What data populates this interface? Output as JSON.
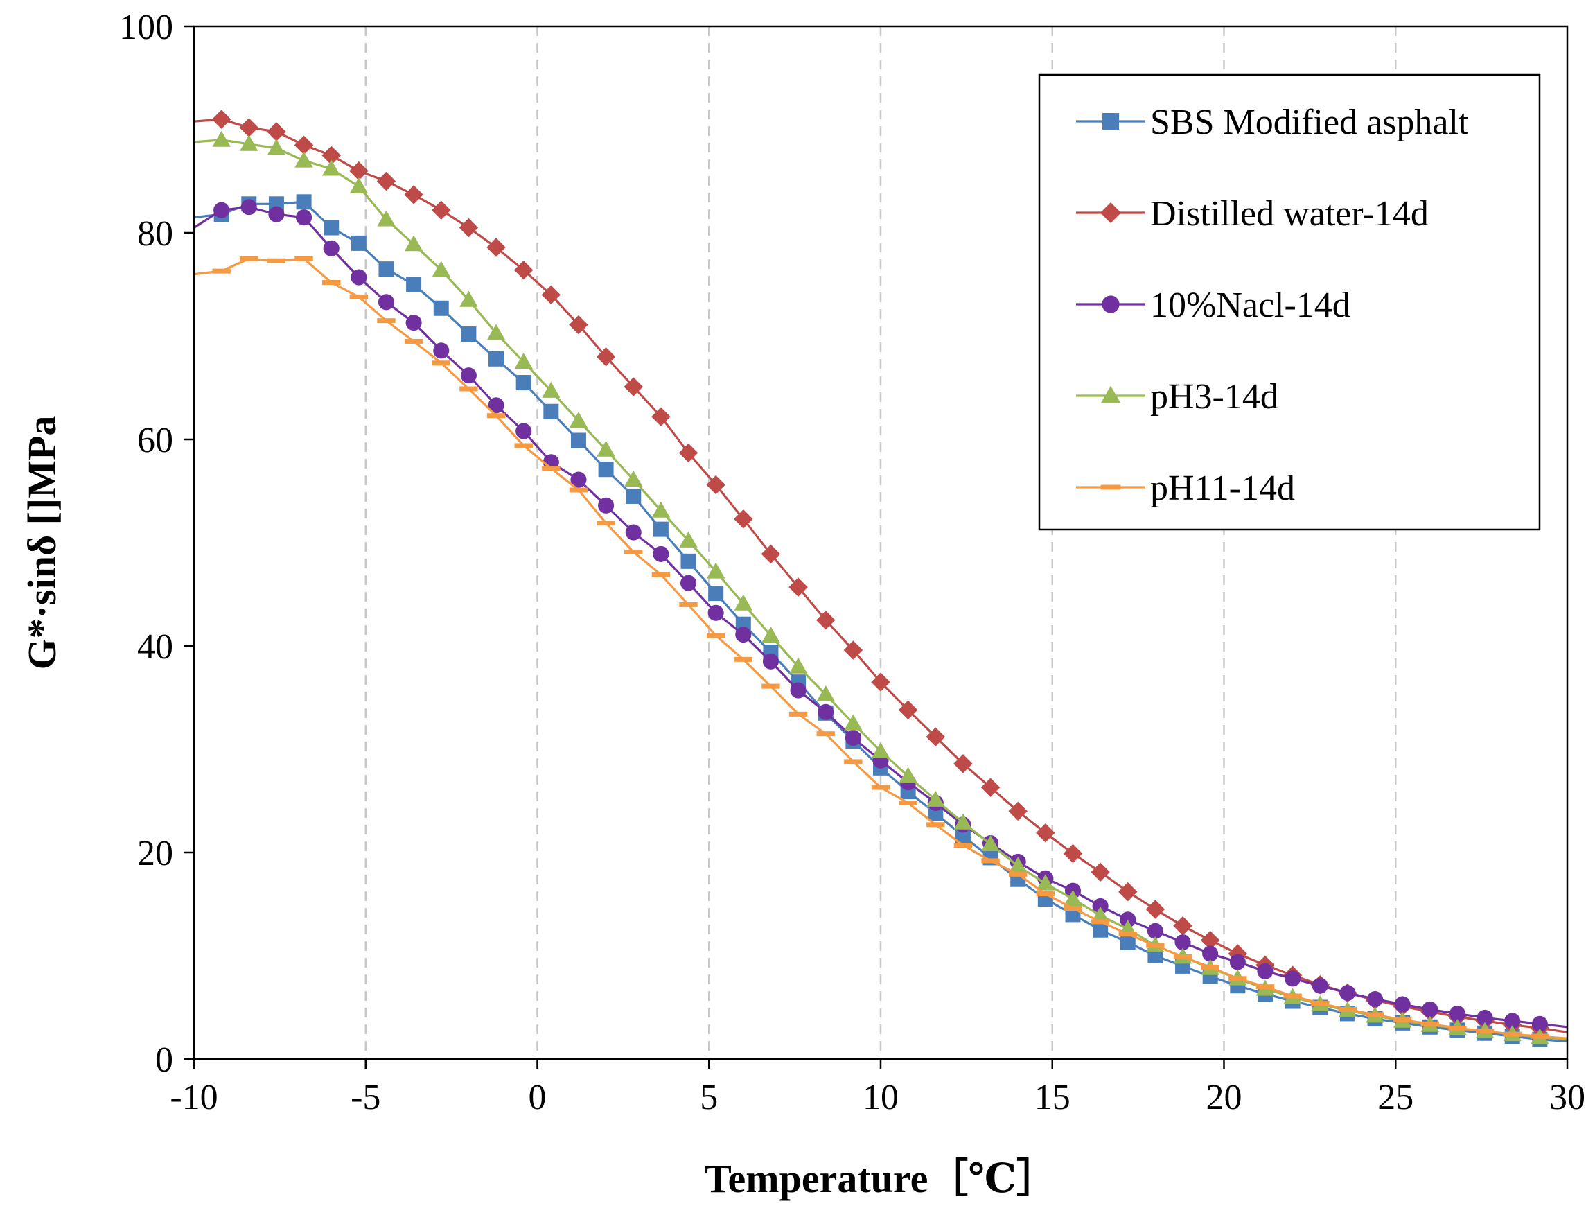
{
  "chart_data": {
    "type": "line",
    "title": "",
    "xlabel": "Temperature［℃］",
    "ylabel": "G*·sinδ []MPa",
    "xlim": [
      -10,
      30
    ],
    "ylim": [
      0,
      100
    ],
    "x_ticks": [
      -10,
      -5,
      0,
      5,
      10,
      15,
      20,
      25,
      30
    ],
    "y_ticks": [
      0,
      20,
      40,
      60,
      80,
      100
    ],
    "x_tick_labels": [
      "-10",
      "-5",
      "0",
      "5",
      "10",
      "15",
      "20",
      "25",
      "30"
    ],
    "y_tick_labels": [
      "0",
      "20",
      "40",
      "60",
      "80",
      "100"
    ],
    "grid": "vertical dashed",
    "legend_position": "top-right",
    "x": [
      -10,
      -9.2,
      -8.4,
      -7.6,
      -6.8,
      -6.0,
      -5.2,
      -4.4,
      -3.6,
      -2.8,
      -2.0,
      -1.2,
      -0.4,
      0.4,
      1.2,
      2.0,
      2.8,
      3.6,
      4.4,
      5.2,
      6.0,
      6.8,
      7.6,
      8.4,
      9.2,
      10.0,
      10.8,
      11.6,
      12.4,
      13.2,
      14.0,
      14.8,
      15.6,
      16.4,
      17.2,
      18.0,
      18.8,
      19.6,
      20.4,
      21.2,
      22.0,
      22.8,
      23.6,
      24.4,
      25.2,
      26.0,
      26.8,
      27.6,
      28.4,
      29.2,
      30.0
    ],
    "series": [
      {
        "name": "SBS Modified asphalt",
        "color": "#4a7ebb",
        "marker": "square",
        "values": [
          81.5,
          81.8,
          82.8,
          82.8,
          83.0,
          80.5,
          79.0,
          76.5,
          75.0,
          72.7,
          70.2,
          67.8,
          65.5,
          62.7,
          59.9,
          57.1,
          54.5,
          51.3,
          48.2,
          45.1,
          42.1,
          39.4,
          36.5,
          33.5,
          30.8,
          28.2,
          25.9,
          23.8,
          21.6,
          19.5,
          17.4,
          15.5,
          14.0,
          12.5,
          11.3,
          10.0,
          9.0,
          8.0,
          7.1,
          6.3,
          5.6,
          5.0,
          4.4,
          3.9,
          3.5,
          3.1,
          2.8,
          2.5,
          2.2,
          1.9,
          1.7
        ]
      },
      {
        "name": "Distilled water-14d",
        "color": "#be4b48",
        "marker": "diamond",
        "values": [
          90.8,
          91.0,
          90.2,
          89.8,
          88.5,
          87.5,
          86.0,
          85.0,
          83.7,
          82.2,
          80.5,
          78.6,
          76.4,
          74.0,
          71.1,
          68.0,
          65.1,
          62.2,
          58.7,
          55.6,
          52.3,
          48.9,
          45.7,
          42.5,
          39.6,
          36.5,
          33.8,
          31.2,
          28.6,
          26.3,
          24.0,
          21.9,
          19.9,
          18.1,
          16.2,
          14.5,
          12.9,
          11.5,
          10.2,
          9.1,
          8.1,
          7.2,
          6.4,
          5.7,
          5.1,
          4.6,
          4.1,
          3.7,
          3.3,
          3.0,
          2.6
        ]
      },
      {
        "name": "10%Nacl-14d",
        "color": "#7030a0",
        "marker": "circle",
        "values": [
          80.5,
          82.2,
          82.5,
          81.8,
          81.5,
          78.5,
          75.7,
          73.3,
          71.3,
          68.6,
          66.2,
          63.3,
          60.8,
          57.8,
          56.1,
          53.6,
          51.0,
          48.9,
          46.1,
          43.2,
          41.1,
          38.5,
          35.7,
          33.6,
          31.1,
          28.9,
          26.8,
          24.8,
          22.7,
          20.9,
          19.1,
          17.5,
          16.3,
          14.8,
          13.5,
          12.4,
          11.3,
          10.2,
          9.4,
          8.5,
          7.8,
          7.1,
          6.4,
          5.8,
          5.3,
          4.8,
          4.4,
          4.0,
          3.7,
          3.4,
          3.1
        ]
      },
      {
        "name": "pH3-14d",
        "color": "#98b954",
        "marker": "triangle",
        "values": [
          88.8,
          89.0,
          88.6,
          88.2,
          87.0,
          86.2,
          84.5,
          81.3,
          78.9,
          76.4,
          73.5,
          70.3,
          67.5,
          64.7,
          61.8,
          59.0,
          56.1,
          53.1,
          50.2,
          47.2,
          44.1,
          41.0,
          38.0,
          35.3,
          32.5,
          29.8,
          27.4,
          25.1,
          22.9,
          20.8,
          18.7,
          17.0,
          15.5,
          13.9,
          12.6,
          11.0,
          9.9,
          8.8,
          7.8,
          6.8,
          6.0,
          5.3,
          4.7,
          4.2,
          3.7,
          3.3,
          3.0,
          2.7,
          2.4,
          2.1,
          1.9
        ]
      },
      {
        "name": "pH11-14d",
        "color": "#f59a43",
        "marker": "dash",
        "values": [
          76.0,
          76.3,
          77.5,
          77.3,
          77.5,
          75.2,
          73.8,
          71.5,
          69.5,
          67.4,
          64.9,
          62.3,
          59.4,
          57.2,
          55.1,
          51.9,
          49.1,
          46.9,
          44.0,
          41.0,
          38.7,
          36.1,
          33.4,
          31.5,
          28.8,
          26.3,
          24.8,
          22.7,
          20.7,
          19.2,
          17.9,
          16.0,
          14.6,
          13.3,
          12.1,
          11.0,
          9.9,
          8.9,
          7.8,
          7.0,
          6.1,
          5.4,
          4.8,
          4.3,
          3.8,
          3.4,
          3.0,
          2.7,
          2.4,
          2.2,
          2.0
        ]
      }
    ]
  }
}
